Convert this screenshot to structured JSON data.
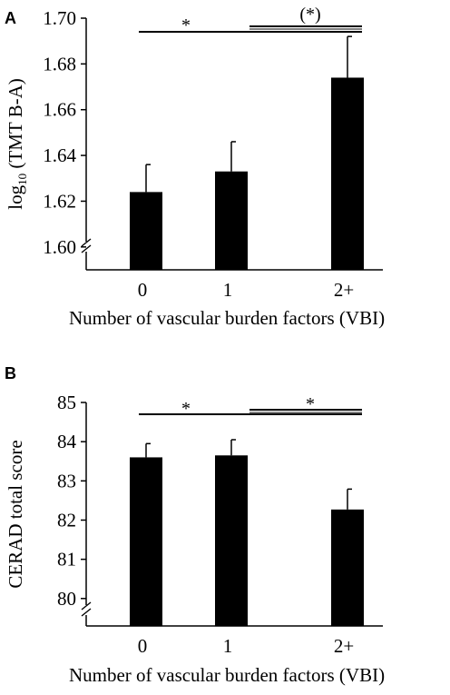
{
  "chart_data": [
    {
      "panel_label": "A",
      "type": "bar",
      "categories": [
        "0",
        "1",
        "2+"
      ],
      "values": [
        1.624,
        1.633,
        1.674
      ],
      "errors": [
        0.012,
        0.013,
        0.018
      ],
      "xlabel": "Number of vascular burden factors (VBI)",
      "ylabel_main": "log",
      "ylabel_sub": "10",
      "ylabel_rest": " (TMT B-A)",
      "ylim": [
        1.59,
        1.7
      ],
      "yticks": [
        "1.60",
        "1.62",
        "1.64",
        "1.66",
        "1.68",
        "1.70"
      ],
      "ytick_values": [
        1.6,
        1.62,
        1.64,
        1.66,
        1.68,
        1.7
      ],
      "axis_break": true,
      "significance": [
        {
          "from": 0,
          "to": 2,
          "label": "*"
        },
        {
          "from": 1,
          "to": 2,
          "label": "(*)"
        }
      ]
    },
    {
      "panel_label": "B",
      "type": "bar",
      "categories": [
        "0",
        "1",
        "2+"
      ],
      "values": [
        83.6,
        83.65,
        82.27
      ],
      "errors": [
        0.35,
        0.4,
        0.52
      ],
      "xlabel": "Number of vascular burden factors (VBI)",
      "ylabel": "CERAD total score",
      "ylim": [
        79.3,
        85
      ],
      "yticks": [
        "80",
        "81",
        "82",
        "83",
        "84",
        "85"
      ],
      "ytick_values": [
        80,
        81,
        82,
        83,
        84,
        85
      ],
      "axis_break": true,
      "significance": [
        {
          "from": 0,
          "to": 2,
          "label": "*"
        },
        {
          "from": 1,
          "to": 2,
          "label": "*"
        }
      ]
    }
  ]
}
